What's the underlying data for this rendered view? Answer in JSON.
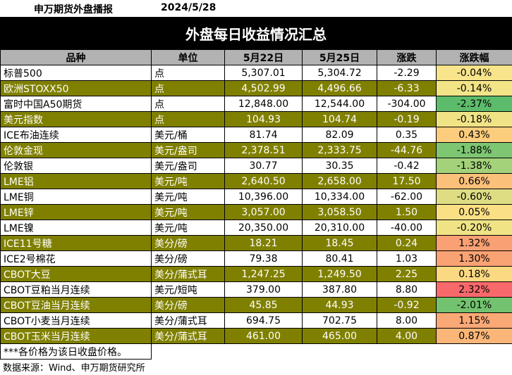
{
  "header": {
    "org_title": "申万期货外盘播报",
    "date": "2024/5/28"
  },
  "title": "外盘每日收益情况汇总",
  "columns": [
    "品种",
    "单位",
    "5月22日",
    "5月25日",
    "涨跌",
    "涨跌幅"
  ],
  "rows": [
    {
      "name": "标普500",
      "unit": "点",
      "d1": "5,307.01",
      "d2": "5,304.72",
      "chg": "-2.29",
      "pct": "-0.04%",
      "olive": false,
      "pct_color": "#f8e48a"
    },
    {
      "name": "欧洲STOXX50",
      "unit": "点",
      "d1": "4,502.99",
      "d2": "4,496.66",
      "chg": "-6.33",
      "pct": "-0.14%",
      "olive": true,
      "pct_color": "#f2e487"
    },
    {
      "name": "富时中国A50期货",
      "unit": "点",
      "d1": "12,848.00",
      "d2": "12,544.00",
      "chg": "-304.00",
      "pct": "-2.37%",
      "olive": false,
      "pct_color": "#5dbc6b"
    },
    {
      "name": "美元指数",
      "unit": "点",
      "d1": "104.93",
      "d2": "104.74",
      "chg": "-0.19",
      "pct": "-0.18%",
      "olive": true,
      "pct_color": "#f0e386"
    },
    {
      "name": "ICE布油连续",
      "unit": "美元/桶",
      "d1": "81.74",
      "d2": "82.09",
      "chg": "0.35",
      "pct": "0.43%",
      "olive": false,
      "pct_color": "#fbcd7c"
    },
    {
      "name": "伦敦金现",
      "unit": "美元/盎司",
      "d1": "2,378.51",
      "d2": "2,333.75",
      "chg": "-44.76",
      "pct": "-1.88%",
      "olive": true,
      "pct_color": "#7ec672"
    },
    {
      "name": "伦敦银",
      "unit": "美元/盎司",
      "d1": "30.77",
      "d2": "30.35",
      "chg": "-0.42",
      "pct": "-1.38%",
      "olive": false,
      "pct_color": "#a3d27a"
    },
    {
      "name": "LME铝",
      "unit": "美元/吨",
      "d1": "2,640.50",
      "d2": "2,658.00",
      "chg": "17.50",
      "pct": "0.66%",
      "olive": true,
      "pct_color": "#fbc07a"
    },
    {
      "name": "LME铜",
      "unit": "美元/吨",
      "d1": "10,396.00",
      "d2": "10,334.00",
      "chg": "-62.00",
      "pct": "-0.60%",
      "olive": false,
      "pct_color": "#dedd84"
    },
    {
      "name": "LME锌",
      "unit": "美元/吨",
      "d1": "3,057.00",
      "d2": "3,058.50",
      "chg": "1.50",
      "pct": "0.05%",
      "olive": true,
      "pct_color": "#fbdf85"
    },
    {
      "name": "LME镍",
      "unit": "美元/吨",
      "d1": "20,350.00",
      "d2": "20,310.00",
      "chg": "-40.00",
      "pct": "-0.20%",
      "olive": false,
      "pct_color": "#f0e386"
    },
    {
      "name": "ICE11号糖",
      "unit": "美分/磅",
      "d1": "18.21",
      "d2": "18.45",
      "chg": "0.24",
      "pct": "1.32%",
      "olive": true,
      "pct_color": "#f9a174"
    },
    {
      "name": "ICE2号棉花",
      "unit": "美分/磅",
      "d1": "79.38",
      "d2": "80.41",
      "chg": "1.03",
      "pct": "1.30%",
      "olive": false,
      "pct_color": "#f9a274"
    },
    {
      "name": "CBOT大豆",
      "unit": "美分/蒲式耳",
      "d1": "1,247.25",
      "d2": "1,249.50",
      "chg": "2.25",
      "pct": "0.18%",
      "olive": true,
      "pct_color": "#fbd882"
    },
    {
      "name": "CBOT豆粕当月连续",
      "unit": "美元/短吨",
      "d1": "379.00",
      "d2": "387.80",
      "chg": "8.80",
      "pct": "2.32%",
      "olive": false,
      "pct_color": "#f8696b"
    },
    {
      "name": "CBOT豆油当月连续",
      "unit": "美分/磅",
      "d1": "45.85",
      "d2": "44.93",
      "chg": "-0.92",
      "pct": "-2.01%",
      "olive": true,
      "pct_color": "#73c26f"
    },
    {
      "name": "CBOT小麦当月连续",
      "unit": "美分/蒲式耳",
      "d1": "694.75",
      "d2": "702.75",
      "chg": "8.00",
      "pct": "1.15%",
      "olive": false,
      "pct_color": "#faa876"
    },
    {
      "name": "CBOT玉米当月连续",
      "unit": "美分/蒲式耳",
      "d1": "461.00",
      "d2": "465.00",
      "chg": "4.00",
      "pct": "0.87%",
      "olive": true,
      "pct_color": "#fab678"
    }
  ],
  "footnote": "***各价格为该日收盘价格。",
  "source": "数据来源：Wind、申万期货研究所"
}
